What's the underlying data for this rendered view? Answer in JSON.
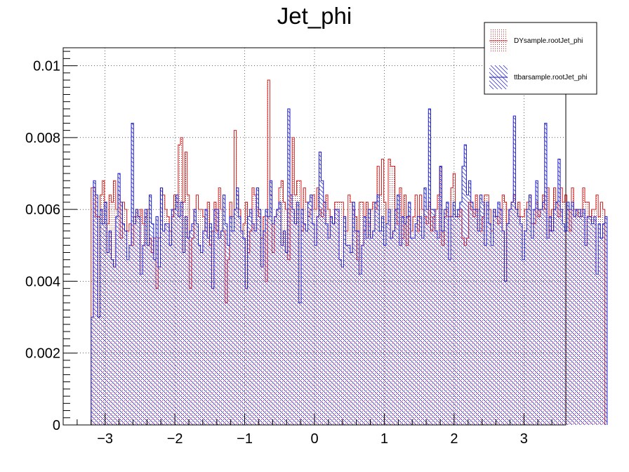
{
  "chart_data": {
    "type": "bar",
    "title": "Jet_phi",
    "xlabel": "",
    "ylabel": "",
    "xlim": [
      -3.6,
      3.6
    ],
    "ylim": [
      0,
      0.0105
    ],
    "x_ticks": [
      -3,
      -2,
      -1,
      0,
      1,
      2,
      3
    ],
    "x_tick_labels": [
      "−3",
      "−2",
      "−1",
      "0",
      "1",
      "2",
      "3"
    ],
    "y_ticks": [
      0,
      0.002,
      0.004,
      0.006,
      0.008,
      0.01
    ],
    "y_tick_labels": [
      "0",
      "0.002",
      "0.004",
      "0.006",
      "0.008",
      "0.01"
    ],
    "grid": true,
    "legend_position": "top-right",
    "bin_edges_range": [
      -3.2,
      3.2
    ],
    "bin_width": 0.032,
    "series": [
      {
        "name": "DYsample.rootJet_phi",
        "color": "#d42020",
        "fill": "dots",
        "values": [
          0.0066,
          0.0066,
          0.0058,
          0.0058,
          0.0064,
          0.0068,
          0.0062,
          0.0056,
          0.0064,
          0.0062,
          0.0068,
          0.006,
          0.0064,
          0.0052,
          0.0062,
          0.006,
          0.0054,
          0.0056,
          0.005,
          0.0058,
          0.006,
          0.0058,
          0.006,
          0.0056,
          0.0058,
          0.006,
          0.0052,
          0.0048,
          0.0052,
          0.0038,
          0.0052,
          0.0066,
          0.0064,
          0.006,
          0.0058,
          0.0054,
          0.0058,
          0.0064,
          0.0062,
          0.0078,
          0.008,
          0.0062,
          0.0076,
          0.0064,
          0.0038,
          0.0052,
          0.006,
          0.0064,
          0.006,
          0.006,
          0.0058,
          0.0054,
          0.0062,
          0.005,
          0.0054,
          0.0062,
          0.0054,
          0.0066,
          0.006,
          0.0054,
          0.0034,
          0.0046,
          0.0062,
          0.0058,
          0.0082,
          0.0064,
          0.006,
          0.0054,
          0.0056,
          0.0062,
          0.0048,
          0.0054,
          0.0066,
          0.0064,
          0.006,
          0.0058,
          0.0052,
          0.0058,
          0.004,
          0.0096,
          0.0064,
          0.0048,
          0.0058,
          0.006,
          0.0066,
          0.0068,
          0.0062,
          0.006,
          0.0046,
          0.0064,
          0.008,
          0.0064,
          0.0068,
          0.0068,
          0.0054,
          0.0066,
          0.0062,
          0.0058,
          0.006,
          0.0064,
          0.006,
          0.0066,
          0.006,
          0.0058,
          0.0062,
          0.0064,
          0.006,
          0.0058,
          0.0056,
          0.0062,
          0.0062,
          0.0062,
          0.0062,
          0.0058,
          0.0054,
          0.0064,
          0.0062,
          0.006,
          0.0058,
          0.0046,
          0.0062,
          0.0062,
          0.0054,
          0.0062,
          0.0056,
          0.006,
          0.0062,
          0.006,
          0.0072,
          0.0064,
          0.0074,
          0.0062,
          0.0056,
          0.0074,
          0.0072,
          0.0072,
          0.006,
          0.0056,
          0.0066,
          0.0052,
          0.0064,
          0.005,
          0.0058,
          0.0054,
          0.0058,
          0.0064,
          0.0054,
          0.0064,
          0.006,
          0.0058,
          0.0056,
          0.0062,
          0.0054,
          0.0058,
          0.006,
          0.0064,
          0.0072,
          0.005,
          0.0058,
          0.006,
          0.0058,
          0.0066,
          0.007,
          0.0058,
          0.0058,
          0.006,
          0.0052,
          0.005,
          0.0052,
          0.0062,
          0.006,
          0.0058,
          0.0064,
          0.006,
          0.0054,
          0.0058,
          0.0064,
          0.0064,
          0.006,
          0.0054,
          0.006,
          0.0058,
          0.0056,
          0.006,
          0.0064,
          0.0062,
          0.0056,
          0.006,
          0.0062,
          0.0064,
          0.006,
          0.0062,
          0.0058,
          0.0058,
          0.006,
          0.0062,
          0.0064,
          0.0056,
          0.0056,
          0.0062,
          0.0058,
          0.006,
          0.0064,
          0.006,
          0.0066,
          0.0054,
          0.006,
          0.0066,
          0.0062,
          0.0058,
          0.0066,
          0.0062,
          0.0064,
          0.006,
          0.0054,
          0.0066,
          0.006,
          0.006,
          0.0058,
          0.006,
          0.0066,
          0.0062,
          0.0062,
          0.0058,
          0.006,
          0.006,
          0.0064,
          0.0058,
          0.0062,
          0.006
        ]
      },
      {
        "name": "ttbarsample.rootJet_phi",
        "color": "#1a1acc",
        "fill": "hatch",
        "values": [
          0.003,
          0.0068,
          0.0064,
          0.003,
          0.006,
          0.0056,
          0.0062,
          0.0048,
          0.0054,
          0.0046,
          0.0044,
          0.0058,
          0.007,
          0.0062,
          0.0056,
          0.0054,
          0.0046,
          0.005,
          0.0084,
          0.0056,
          0.006,
          0.0058,
          0.0042,
          0.005,
          0.006,
          0.005,
          0.0064,
          0.0056,
          0.0046,
          0.0058,
          0.0044,
          0.0066,
          0.0054,
          0.0056,
          0.0056,
          0.005,
          0.006,
          0.006,
          0.0064,
          0.0058,
          0.0062,
          0.0048,
          0.0058,
          0.0052,
          0.0054,
          0.0056,
          0.006,
          0.0056,
          0.005,
          0.0048,
          0.0054,
          0.006,
          0.0052,
          0.0056,
          0.0038,
          0.006,
          0.006,
          0.0052,
          0.0054,
          0.0064,
          0.0056,
          0.005,
          0.0058,
          0.0054,
          0.006,
          0.0066,
          0.0058,
          0.0054,
          0.0052,
          0.0038,
          0.0058,
          0.006,
          0.0056,
          0.0054,
          0.0066,
          0.006,
          0.0044,
          0.0054,
          0.006,
          0.0058,
          0.0068,
          0.0056,
          0.0058,
          0.006,
          0.0062,
          0.005,
          0.0054,
          0.0048,
          0.0088,
          0.0064,
          0.006,
          0.0056,
          0.0062,
          0.0034,
          0.006,
          0.0056,
          0.0054,
          0.0062,
          0.0064,
          0.0056,
          0.005,
          0.0058,
          0.0076,
          0.0068,
          0.0062,
          0.0056,
          0.0052,
          0.0058,
          0.0056,
          0.006,
          0.006,
          0.0046,
          0.0044,
          0.0058,
          0.005,
          0.005,
          0.0048,
          0.0062,
          0.0054,
          0.0054,
          0.0042,
          0.005,
          0.0058,
          0.0052,
          0.006,
          0.0052,
          0.0054,
          0.0062,
          0.0064,
          0.0054,
          0.0058,
          0.005,
          0.0056,
          0.006,
          0.0052,
          0.0054,
          0.006,
          0.0064,
          0.005,
          0.0058,
          0.0056,
          0.0058,
          0.0062,
          0.0052,
          0.0052,
          0.0056,
          0.0058,
          0.0058,
          0.0052,
          0.0066,
          0.006,
          0.0088,
          0.006,
          0.006,
          0.0054,
          0.0052,
          0.0072,
          0.0054,
          0.006,
          0.0062,
          0.0046,
          0.0058,
          0.0062,
          0.0058,
          0.006,
          0.0062,
          0.0072,
          0.0078,
          0.0064,
          0.0068,
          0.0062,
          0.006,
          0.006,
          0.0054,
          0.0064,
          0.0062,
          0.005,
          0.0062,
          0.0056,
          0.005,
          0.006,
          0.0058,
          0.0062,
          0.006,
          0.0054,
          0.004,
          0.0056,
          0.006,
          0.0062,
          0.0086,
          0.006,
          0.0058,
          0.0056,
          0.0046,
          0.0054,
          0.006,
          0.0064,
          0.0052,
          0.006,
          0.0068,
          0.006,
          0.006,
          0.0062,
          0.0084,
          0.0052,
          0.0058,
          0.0054,
          0.006,
          0.0062,
          0.0074,
          0.006,
          0.0056,
          0.0054,
          0.0062,
          0.006,
          0.0062,
          0.0058,
          0.006,
          0.006,
          0.0058,
          0.006,
          0.005,
          0.0058,
          0.0058,
          0.0056,
          0.0058,
          0.0042,
          0.0056,
          0.0052,
          0.0056,
          0.0058
        ]
      }
    ]
  }
}
